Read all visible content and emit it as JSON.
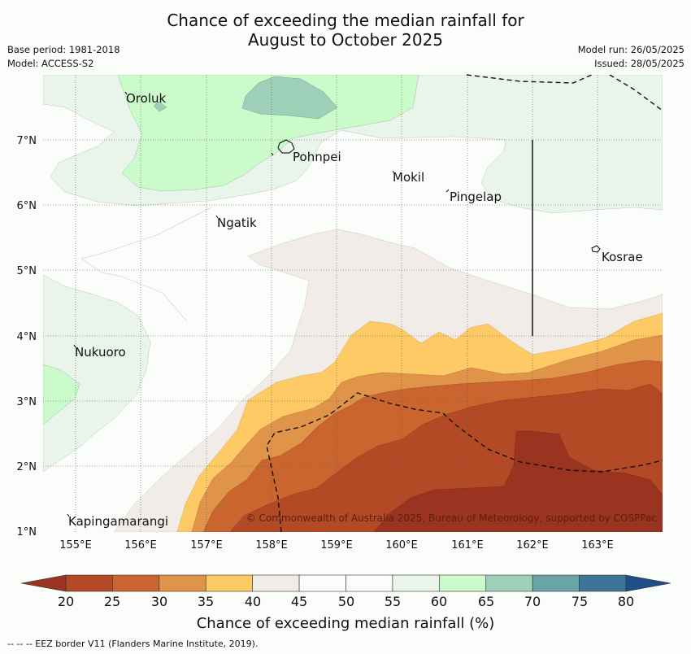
{
  "title_line1": "Chance of exceeding the median rainfall for",
  "title_line2": "August to October 2025",
  "meta": {
    "base_period": "Base period: 1981-2018",
    "model": "Model: ACCESS-S2",
    "model_run": "Model run: 26/05/2025",
    "issued": "Issued: 28/05/2025"
  },
  "map": {
    "lon_range": [
      154.5,
      164.0
    ],
    "lat_range": [
      1.0,
      8.0
    ],
    "lon_ticks": [
      "155°E",
      "156°E",
      "157°E",
      "158°E",
      "159°E",
      "160°E",
      "161°E",
      "162°E",
      "163°E"
    ],
    "lat_ticks": [
      "1°N",
      "2°N",
      "3°N",
      "4°N",
      "5°N",
      "6°N",
      "7°N"
    ],
    "places": [
      "Oroluk",
      "Pohnpei",
      "Mokil",
      "Pingelap",
      "Ngatik",
      "Kosrae",
      "Nukuoro",
      "Kapingamarangi"
    ],
    "credit": "© Commonwealth of Australia 2025, Bureau of Meteorology, supported by COSPPac"
  },
  "colorbar": {
    "ticks": [
      "20",
      "25",
      "30",
      "35",
      "40",
      "45",
      "50",
      "55",
      "60",
      "65",
      "70",
      "75",
      "80"
    ],
    "colors": [
      "#b34a25",
      "#cb6530",
      "#e0944a",
      "#fdca66",
      "#f1ece7",
      "#fbfdfb",
      "#fbfdfb",
      "#e9f4ea",
      "#cbfbcb",
      "#9dcfb9",
      "#6ba3a7",
      "#3c7597"
    ],
    "under_color": "#9a3320",
    "over_color": "#1f4f86",
    "label": "Chance of exceeding median rainfall (%)"
  },
  "footnote": "--  --  -- EEZ border V11 (Flanders Marine Institute, 2019)."
}
